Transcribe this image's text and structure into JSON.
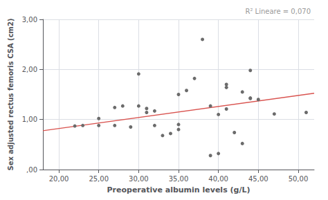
{
  "chart_data": {
    "type": "scatter",
    "x_label": "Preoperative albumin levels (g/L)",
    "y_label": "Sex adjusted rectus femoris CSA (cm2)",
    "annotation": "R² Lineare = 0,070",
    "annotation_color": "#999999",
    "series": [
      {
        "type": "scatter",
        "color": "#6b6b6b",
        "x": [
          22,
          23,
          25,
          25,
          27,
          27,
          28,
          29,
          30,
          30,
          31,
          31,
          32,
          32,
          33,
          34,
          35,
          35,
          35,
          36,
          37,
          38,
          39,
          39,
          40,
          40,
          41,
          41,
          41,
          42,
          43,
          43,
          44,
          44,
          44,
          45,
          47,
          51
        ],
        "values": [
          0.87,
          0.88,
          1.02,
          0.88,
          1.24,
          0.88,
          1.27,
          0.85,
          1.91,
          1.27,
          1.22,
          1.14,
          1.17,
          0.88,
          0.68,
          0.72,
          0.8,
          0.9,
          1.5,
          1.58,
          1.82,
          2.6,
          1.27,
          0.28,
          0.32,
          1.1,
          1.7,
          1.21,
          1.64,
          0.74,
          1.55,
          0.52,
          1.42,
          1.43,
          1.98,
          1.4,
          1.11,
          1.14
        ]
      },
      {
        "type": "line",
        "color": "#d9534f",
        "x": [
          18,
          52
        ],
        "values": [
          0.776,
          1.524
        ]
      }
    ],
    "xlim": [
      18,
      52
    ],
    "ylim": [
      0,
      3.0
    ],
    "xticks": [
      {
        "value": 20,
        "label": "20,00"
      },
      {
        "value": 25,
        "label": "25,00"
      },
      {
        "value": 30,
        "label": "30,00"
      },
      {
        "value": 35,
        "label": "35,00"
      },
      {
        "value": 40,
        "label": "40,00"
      },
      {
        "value": 45,
        "label": "45,00"
      },
      {
        "value": 50,
        "label": "50,00"
      }
    ],
    "yticks": [
      {
        "value": 0,
        "label": ",00"
      },
      {
        "value": 1,
        "label": "1,00"
      },
      {
        "value": 2,
        "label": "2,00"
      },
      {
        "value": 3,
        "label": "3,00"
      }
    ],
    "grid": true
  }
}
